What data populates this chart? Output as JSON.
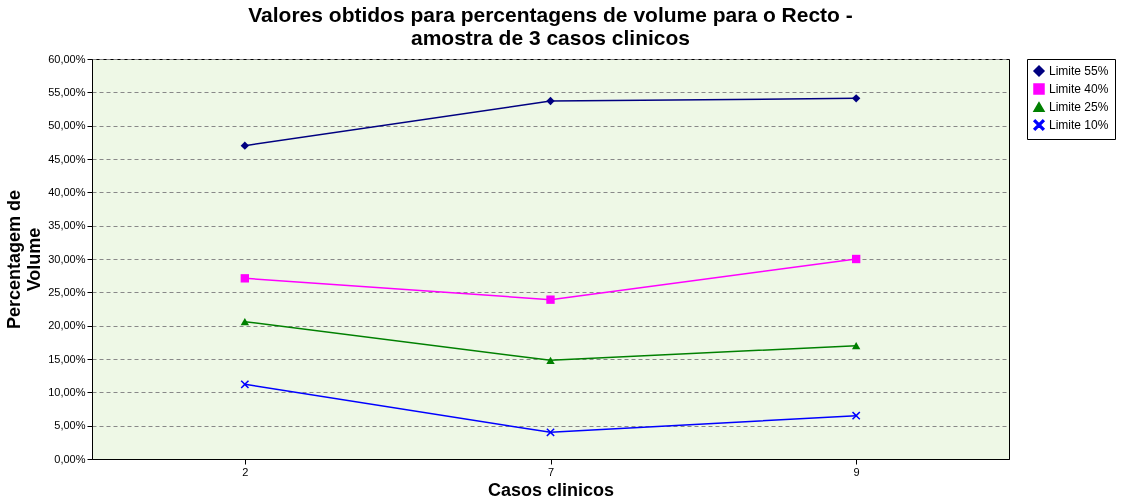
{
  "chart_data": {
    "type": "line",
    "title": "Valores obtidos para percentagens de volume para o Recto - amostra de 3 casos clinicos",
    "xlabel": "Casos clinicos",
    "ylabel": "Percentagem de Volume",
    "categories": [
      "2",
      "7",
      "9"
    ],
    "series": [
      {
        "name": "Limite 55%",
        "color": "#000080",
        "marker": "diamond",
        "values": [
          47.0,
          53.7,
          54.1
        ]
      },
      {
        "name": "Limite 40%",
        "color": "#ff00ff",
        "marker": "square",
        "values": [
          27.1,
          23.9,
          30.0
        ]
      },
      {
        "name": "Limite 25%",
        "color": "#008000",
        "marker": "triangle",
        "values": [
          20.6,
          14.8,
          17.0
        ]
      },
      {
        "name": "Limite 10%",
        "color": "#0000ff",
        "marker": "cross",
        "values": [
          11.2,
          4.0,
          6.5
        ]
      }
    ],
    "ylim": [
      0,
      60
    ],
    "yticks": [
      {
        "value": 0,
        "label": "0,00%"
      },
      {
        "value": 5,
        "label": "5,00%"
      },
      {
        "value": 10,
        "label": "10,00%"
      },
      {
        "value": 15,
        "label": "15,00%"
      },
      {
        "value": 20,
        "label": "20,00%"
      },
      {
        "value": 25,
        "label": "25,00%"
      },
      {
        "value": 30,
        "label": "30,00%"
      },
      {
        "value": 35,
        "label": "35,00%"
      },
      {
        "value": 40,
        "label": "40,00%"
      },
      {
        "value": 45,
        "label": "45,00%"
      },
      {
        "value": 50,
        "label": "50,00%"
      },
      {
        "value": 55,
        "label": "55,00%"
      },
      {
        "value": 60,
        "label": "60,00%"
      }
    ],
    "grid": "y",
    "legend": "right",
    "line_style": "solid"
  }
}
